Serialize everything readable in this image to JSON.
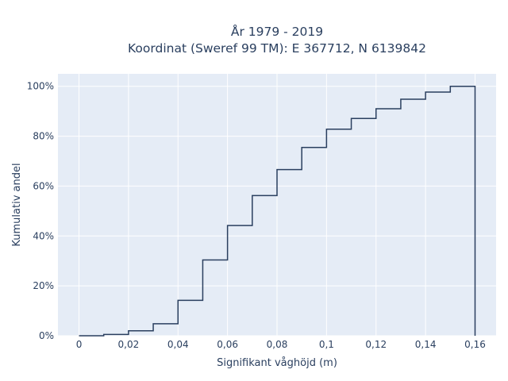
{
  "chart_data": {
    "type": "line",
    "line_shape": "step",
    "title_line1": "År 1979 - 2019",
    "title_line2": "Koordinat (Sweref 99 TM): E 367712, N 6139842",
    "xlabel": "Signifikant våghöjd (m)",
    "ylabel": "Kumulativ andel",
    "xlim": [
      -0.0085,
      0.1685
    ],
    "ylim": [
      0,
      105
    ],
    "x_ticks": [
      0,
      0.02,
      0.04,
      0.06,
      0.08,
      0.1,
      0.12,
      0.14,
      0.16
    ],
    "x_tick_labels": [
      "0",
      "0,02",
      "0,04",
      "0,06",
      "0,08",
      "0,1",
      "0,12",
      "0,14",
      "0,16"
    ],
    "y_ticks": [
      0,
      20,
      40,
      60,
      80,
      100
    ],
    "y_tick_labels": [
      "0%",
      "20%",
      "40%",
      "60%",
      "80%",
      "100%"
    ],
    "series": [
      {
        "x": [
          0,
          0.01,
          0.02,
          0.03,
          0.04,
          0.05,
          0.06,
          0.07,
          0.08,
          0.09,
          0.1,
          0.11,
          0.12,
          0.13,
          0.14,
          0.15,
          0.16
        ],
        "y": [
          0,
          0.5,
          2,
          4.8,
          14.2,
          30.4,
          44.2,
          56.2,
          66.6,
          75.5,
          82.8,
          87.1,
          91,
          94.8,
          97.7,
          100,
          0
        ]
      }
    ],
    "grid": true,
    "colors": {
      "plot_bg": "#e5ecf6",
      "grid": "#ffffff",
      "line": "#2a3f5f",
      "text": "#2a3f5f"
    }
  }
}
